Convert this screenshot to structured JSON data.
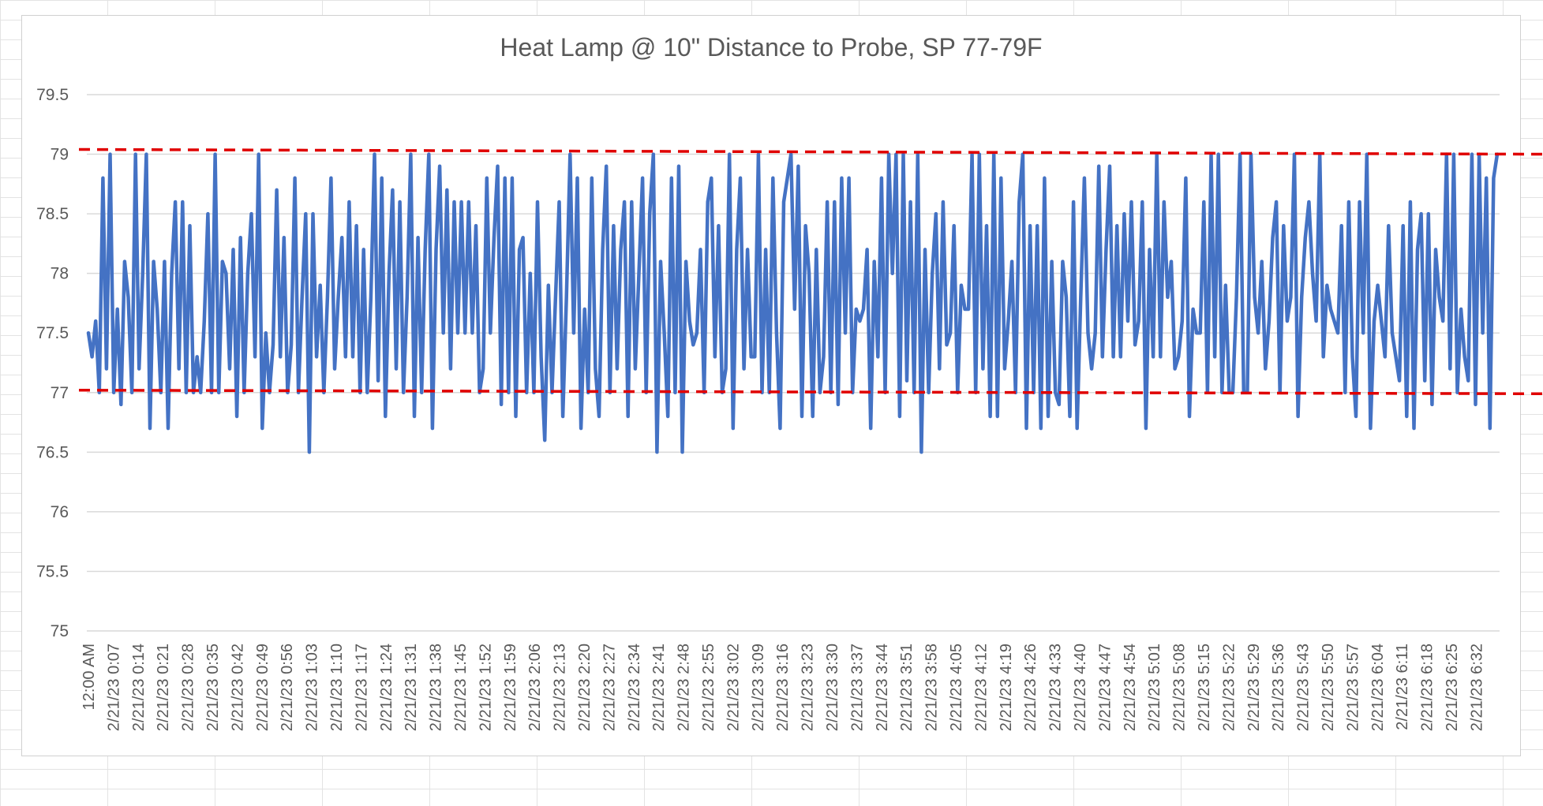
{
  "chart_data": {
    "type": "line",
    "title": "Heat Lamp @ 10\" Distance to Probe, SP 77-79F",
    "xlabel": "",
    "ylabel": "",
    "ylim": [
      75,
      79.5
    ],
    "yticks": [
      "79.5",
      "79",
      "78.5",
      "78",
      "77.5",
      "77",
      "76.5",
      "76",
      "75.5",
      "75"
    ],
    "yticks_values": [
      79.5,
      79,
      78.5,
      78,
      77.5,
      77,
      76.5,
      76,
      75.5,
      75
    ],
    "x_tick_labels": [
      "12:00 AM",
      "2/21/23 0:07",
      "2/21/23 0:14",
      "2/21/23 0:21",
      "2/21/23 0:28",
      "2/21/23 0:35",
      "2/21/23 0:42",
      "2/21/23 0:49",
      "2/21/23 0:56",
      "2/21/23 1:03",
      "2/21/23 1:10",
      "2/21/23 1:17",
      "2/21/23 1:24",
      "2/21/23 1:31",
      "2/21/23 1:38",
      "2/21/23 1:45",
      "2/21/23 1:52",
      "2/21/23 1:59",
      "2/21/23 2:06",
      "2/21/23 2:13",
      "2/21/23 2:20",
      "2/21/23 2:27",
      "2/21/23 2:34",
      "2/21/23 2:41",
      "2/21/23 2:48",
      "2/21/23 2:55",
      "2/21/23 3:02",
      "2/21/23 3:09",
      "2/21/23 3:16",
      "2/21/23 3:23",
      "2/21/23 3:30",
      "2/21/23 3:37",
      "2/21/23 3:44",
      "2/21/23 3:51",
      "2/21/23 3:58",
      "2/21/23 4:05",
      "2/21/23 4:12",
      "2/21/23 4:19",
      "2/21/23 4:26",
      "2/21/23 4:33",
      "2/21/23 4:40",
      "2/21/23 4:47",
      "2/21/23 4:54",
      "2/21/23 5:01",
      "2/21/23 5:08",
      "2/21/23 5:15",
      "2/21/23 5:22",
      "2/21/23 5:29",
      "2/21/23 5:36",
      "2/21/23 5:43",
      "2/21/23 5:50",
      "2/21/23 5:57",
      "2/21/23 6:04",
      "2/21/23 6:11",
      "2/21/23 6:18",
      "2/21/23 6:25",
      "2/21/23 6:32"
    ],
    "series": [
      {
        "color": "#4472c4",
        "values": [
          77.5,
          77.3,
          77.6,
          77.0,
          78.8,
          77.2,
          79.0,
          77.0,
          77.7,
          76.9,
          78.1,
          77.8,
          77.0,
          79.0,
          77.2,
          78.0,
          79.0,
          76.7,
          78.1,
          77.7,
          77.0,
          78.1,
          76.7,
          78.0,
          78.6,
          77.2,
          78.6,
          77.0,
          78.4,
          77.0,
          77.3,
          77.0,
          77.6,
          78.5,
          77.0,
          79.0,
          77.0,
          78.1,
          78.0,
          77.2,
          78.2,
          76.8,
          78.3,
          77.0,
          78.0,
          78.5,
          77.3,
          79.0,
          76.7,
          77.5,
          77.0,
          77.4,
          78.7,
          77.3,
          78.3,
          77.0,
          77.4,
          78.8,
          77.0,
          77.8,
          78.5,
          76.5,
          78.5,
          77.3,
          77.9,
          77.0,
          77.8,
          78.8,
          77.2,
          77.8,
          78.3,
          77.3,
          78.6,
          77.3,
          78.4,
          77.0,
          78.2,
          77.0,
          77.8,
          79.0,
          77.1,
          78.8,
          76.8,
          78.0,
          78.7,
          77.2,
          78.6,
          77.0,
          77.8,
          79.0,
          76.8,
          78.3,
          77.0,
          78.2,
          79.0,
          76.7,
          78.2,
          78.9,
          77.5,
          78.7,
          77.2,
          78.6,
          77.5,
          78.6,
          77.5,
          78.6,
          77.5,
          78.4,
          77.0,
          77.2,
          78.8,
          77.5,
          78.3,
          78.9,
          76.9,
          78.8,
          77.0,
          78.8,
          76.8,
          78.2,
          78.3,
          77.0,
          78.0,
          77.0,
          78.6,
          77.3,
          76.6,
          77.9,
          77.0,
          77.8,
          78.6,
          76.8,
          77.8,
          79.0,
          77.5,
          78.8,
          76.7,
          77.7,
          77.0,
          78.8,
          77.2,
          76.8,
          78.2,
          78.9,
          77.0,
          78.4,
          77.2,
          78.2,
          78.6,
          76.8,
          78.6,
          77.2,
          78.0,
          78.8,
          77.0,
          78.5,
          79.0,
          76.5,
          78.1,
          77.5,
          76.8,
          78.8,
          77.0,
          78.9,
          76.5,
          78.1,
          77.6,
          77.4,
          77.5,
          78.2,
          77.0,
          78.6,
          78.8,
          77.3,
          78.4,
          77.0,
          77.2,
          79.0,
          76.7,
          78.2,
          78.8,
          77.2,
          78.2,
          77.3,
          77.3,
          79.0,
          77.0,
          78.2,
          77.0,
          78.8,
          77.5,
          76.7,
          78.6,
          78.8,
          79.0,
          77.7,
          78.9,
          76.8,
          78.4,
          78.0,
          76.8,
          78.2,
          77.0,
          77.3,
          78.6,
          77.0,
          78.6,
          76.9,
          78.8,
          77.5,
          78.8,
          77.0,
          77.7,
          77.6,
          77.7,
          78.2,
          76.7,
          78.1,
          77.3,
          78.8,
          77.0,
          79.0,
          78.0,
          79.0,
          76.8,
          79.0,
          77.1,
          78.6,
          77.0,
          79.0,
          76.5,
          78.2,
          77.0,
          78.0,
          78.5,
          77.2,
          78.6,
          77.4,
          77.5,
          78.4,
          77.0,
          77.9,
          77.7,
          77.7,
          79.0,
          77.0,
          79.0,
          77.2,
          78.4,
          76.8,
          79.0,
          76.8,
          78.8,
          77.2,
          77.6,
          78.1,
          77.0,
          78.6,
          79.0,
          76.7,
          78.4,
          77.0,
          78.4,
          76.7,
          78.8,
          76.8,
          78.1,
          77.0,
          76.9,
          78.1,
          77.8,
          76.8,
          78.6,
          76.7,
          77.8,
          78.8,
          77.5,
          77.2,
          77.5,
          78.9,
          77.3,
          78.2,
          78.9,
          77.3,
          78.4,
          77.3,
          78.5,
          77.6,
          78.6,
          77.4,
          77.6,
          78.6,
          76.7,
          78.2,
          77.3,
          79.0,
          77.3,
          78.6,
          77.8,
          78.1,
          77.2,
          77.3,
          77.6,
          78.8,
          76.8,
          77.7,
          77.5,
          77.5,
          78.6,
          77.0,
          79.0,
          77.3,
          79.0,
          77.0,
          77.9,
          77.0,
          77.0,
          77.8,
          79.0,
          77.0,
          77.0,
          79.0,
          77.8,
          77.5,
          78.1,
          77.2,
          77.6,
          78.3,
          78.6,
          77.0,
          78.4,
          77.6,
          77.8,
          79.0,
          76.8,
          77.8,
          78.3,
          78.6,
          78.0,
          77.6,
          79.0,
          77.3,
          77.9,
          77.7,
          77.6,
          77.5,
          78.4,
          77.0,
          78.6,
          77.3,
          76.8,
          78.6,
          77.5,
          79.0,
          76.7,
          77.6,
          77.9,
          77.6,
          77.3,
          78.4,
          77.5,
          77.3,
          77.1,
          78.4,
          76.8,
          78.6,
          76.7,
          78.2,
          78.5,
          77.1,
          78.5,
          76.9,
          78.2,
          77.8,
          77.6,
          79.0,
          77.2,
          79.0,
          77.0,
          77.7,
          77.3,
          77.1,
          79.0,
          76.9,
          79.0,
          77.5,
          78.8,
          76.7,
          78.8,
          79.0
        ]
      }
    ],
    "reference_lines": [
      {
        "color": "#e00000",
        "style": "dashed",
        "y_start": 79.04,
        "y_end": 79.0
      },
      {
        "color": "#e00000",
        "style": "dashed",
        "y_start": 77.02,
        "y_end": 76.99
      }
    ],
    "grid": true,
    "legend": "none"
  }
}
